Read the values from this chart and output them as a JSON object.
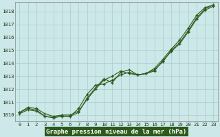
{
  "title": "Graphe pression niveau de la mer (hPa)",
  "bg_color": "#cce8e8",
  "plot_bg": "#cce8e8",
  "line_color": "#2d5a1b",
  "grid_color": "#aacccc",
  "xlim": [
    -0.5,
    23.5
  ],
  "ylim": [
    1009.5,
    1018.7
  ],
  "xticks": [
    0,
    1,
    2,
    3,
    4,
    5,
    6,
    7,
    8,
    9,
    10,
    11,
    12,
    13,
    14,
    15,
    16,
    17,
    18,
    19,
    20,
    21,
    22,
    23
  ],
  "yticks": [
    1010,
    1011,
    1012,
    1013,
    1014,
    1015,
    1016,
    1017,
    1018
  ],
  "series": [
    [
      1010.2,
      1010.6,
      1010.5,
      1010.1,
      1009.9,
      1010.0,
      1010.0,
      1010.3,
      1011.2,
      1012.0,
      1012.7,
      1013.0,
      1013.4,
      1013.2,
      1013.1,
      1013.2,
      1013.5,
      1014.1,
      1015.0,
      1015.6,
      1016.5,
      1017.5,
      1018.2,
      1018.5
    ],
    [
      1010.2,
      1010.5,
      1010.4,
      1009.9,
      1009.8,
      1009.9,
      1009.9,
      1010.2,
      1011.3,
      1012.1,
      1012.8,
      1012.5,
      1013.3,
      1013.5,
      1013.1,
      1013.2,
      1013.4,
      1014.2,
      1014.9,
      1015.5,
      1016.4,
      1017.4,
      1018.1,
      1018.4
    ],
    [
      1010.1,
      1010.4,
      1010.3,
      1009.9,
      1009.8,
      1009.9,
      1009.9,
      1010.5,
      1011.6,
      1012.3,
      1012.4,
      1012.7,
      1013.1,
      1013.3,
      1013.1,
      1013.2,
      1013.6,
      1014.3,
      1015.1,
      1015.8,
      1016.7,
      1017.7,
      1018.3,
      1018.5
    ]
  ],
  "title_fontsize": 6.5,
  "tick_fontsize": 5.2,
  "label_color": "#2d5a1b",
  "label_bg": "#2d5a1b",
  "label_fg": "#ffffff"
}
